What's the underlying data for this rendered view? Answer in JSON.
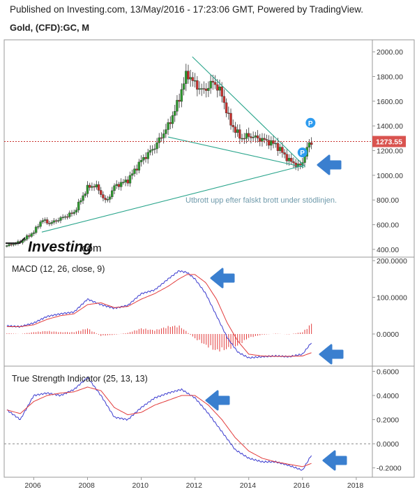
{
  "header": {
    "published": "Published on Investing.com, 13/May/2016 - 17:23:06 GMT, Powered by TradingView.",
    "symbol": "Gold, (CFD):GC, M"
  },
  "logo": {
    "name": "Investing",
    "suffix": ".com"
  },
  "annotation": "Utbrott upp efter falskt brott under stödlinjen.",
  "colors": {
    "up": "#2e9a2e",
    "down": "#c9302c",
    "trend": "#2aa58c",
    "macd": "#3b3bcf",
    "signal": "#e23b3b",
    "price_line": "#c9302c",
    "price_badge": "#d9534f",
    "arrow": "#3a7fcf",
    "marker": "#2d9bef"
  },
  "chart_data": [
    {
      "type": "candlestick",
      "title": "Gold, (CFD):GC, M",
      "x": [
        2005,
        2005.5,
        2006,
        2006.3,
        2006.6,
        2007,
        2007.5,
        2008,
        2008.3,
        2008.7,
        2009,
        2009.5,
        2010,
        2010.5,
        2011,
        2011.3,
        2011.7,
        2012,
        2012.3,
        2012.7,
        2013,
        2013.3,
        2013.7,
        2014,
        2014.5,
        2015,
        2015.5,
        2015.9,
        2016,
        2016.2,
        2016.37
      ],
      "y": [
        430,
        460,
        540,
        640,
        610,
        650,
        700,
        900,
        920,
        780,
        910,
        960,
        1120,
        1230,
        1400,
        1550,
        1830,
        1740,
        1680,
        1760,
        1650,
        1430,
        1300,
        1320,
        1290,
        1250,
        1120,
        1070,
        1110,
        1240,
        1273.55
      ],
      "ylim": [
        360,
        2080
      ],
      "yticks": [
        "2000.00",
        "1800.00",
        "1600.00",
        "1400.00",
        "1200.00",
        "1000.00",
        "800.00",
        "600.00",
        "400.00"
      ],
      "last_price": "1273.55",
      "markers": [
        "P",
        "P"
      ],
      "trendlines": [
        "resistance",
        "support",
        "long-term support"
      ]
    },
    {
      "type": "line",
      "title": "MACD (12, 26, close, 9)",
      "x": [
        2005,
        2005.5,
        2006,
        2006.5,
        2007,
        2007.5,
        2008,
        2008.5,
        2009,
        2009.5,
        2010,
        2010.5,
        2011,
        2011.4,
        2011.7,
        2012,
        2012.4,
        2012.8,
        2013.2,
        2013.6,
        2014,
        2014.5,
        2015,
        2015.5,
        2016,
        2016.37
      ],
      "series": [
        {
          "name": "MACD",
          "values": [
            22,
            20,
            30,
            48,
            55,
            60,
            95,
            80,
            70,
            78,
            110,
            120,
            150,
            172,
            168,
            150,
            110,
            50,
            -10,
            -50,
            -65,
            -62,
            -60,
            -62,
            -55,
            -20
          ]
        },
        {
          "name": "Signal",
          "values": [
            20,
            20,
            25,
            40,
            50,
            55,
            80,
            85,
            72,
            75,
            95,
            110,
            130,
            150,
            162,
            162,
            140,
            95,
            30,
            -20,
            -55,
            -60,
            -61,
            -61,
            -60,
            -50
          ]
        }
      ],
      "histogram": [
        2,
        0,
        5,
        8,
        5,
        5,
        15,
        -5,
        -2,
        3,
        15,
        10,
        20,
        22,
        6,
        -12,
        -30,
        -45,
        -40,
        -30,
        -10,
        -2,
        1,
        -1,
        5,
        30
      ],
      "ylim": [
        -80,
        200
      ],
      "yticks": [
        "200.0000",
        "100.0000",
        "0.0000"
      ]
    },
    {
      "type": "line",
      "title": "True Strength Indicator (25, 13, 13)",
      "x": [
        2005,
        2005.5,
        2006,
        2006.5,
        2007,
        2007.5,
        2008,
        2008.5,
        2009,
        2009.5,
        2010,
        2010.5,
        2011,
        2011.5,
        2012,
        2012.5,
        2013,
        2013.5,
        2014,
        2014.5,
        2015,
        2015.5,
        2016,
        2016.37
      ],
      "series": [
        {
          "name": "TSI",
          "values": [
            0.28,
            0.2,
            0.4,
            0.42,
            0.4,
            0.45,
            0.55,
            0.4,
            0.22,
            0.2,
            0.3,
            0.38,
            0.42,
            0.45,
            0.38,
            0.25,
            0.1,
            -0.05,
            -0.12,
            -0.15,
            -0.15,
            -0.18,
            -0.22,
            -0.08
          ]
        },
        {
          "name": "Signal",
          "values": [
            0.28,
            0.25,
            0.35,
            0.4,
            0.42,
            0.43,
            0.47,
            0.44,
            0.3,
            0.24,
            0.26,
            0.32,
            0.36,
            0.4,
            0.4,
            0.32,
            0.2,
            0.05,
            -0.06,
            -0.12,
            -0.15,
            -0.17,
            -0.19,
            -0.16
          ]
        }
      ],
      "ylim": [
        -0.26,
        0.62
      ],
      "yticks": [
        "0.6000",
        "0.4000",
        "0.2000",
        "0.0000",
        "-0.2000"
      ]
    }
  ],
  "xaxis": {
    "ticks": [
      "2006",
      "2008",
      "2010",
      "2012",
      "2014",
      "2016",
      "2018"
    ],
    "values": [
      2006,
      2008,
      2010,
      2012,
      2014,
      2016,
      2018
    ],
    "range": [
      2004.9,
      2018.6
    ]
  }
}
